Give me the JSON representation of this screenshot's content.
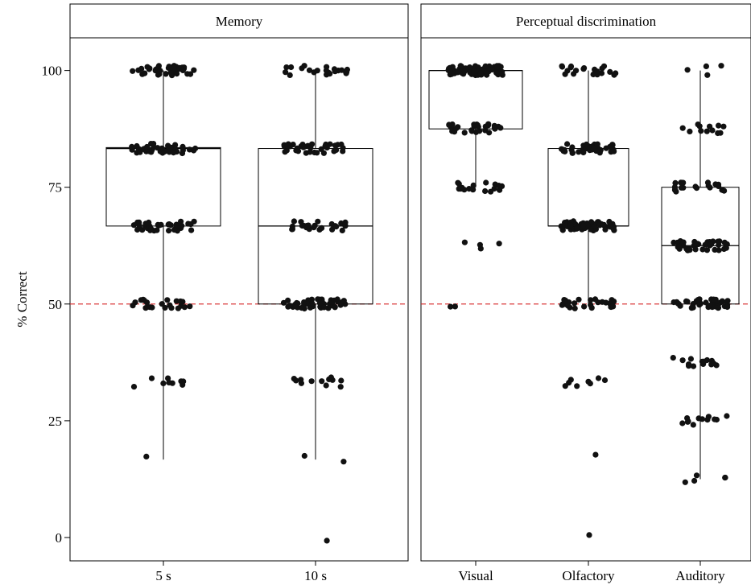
{
  "chart_data": {
    "type": "box-jitter",
    "ylabel": "% Correct",
    "ylim": [
      -5,
      107
    ],
    "yticks": [
      0,
      25,
      50,
      75,
      100
    ],
    "reference_line": {
      "y": 50,
      "color": "#d62728",
      "style": "dashed"
    },
    "point_color": "#111111",
    "panels": [
      {
        "title": "Memory",
        "categories": [
          "5 s",
          "10 s"
        ],
        "boxes": [
          {
            "category": "5 s",
            "min": 16.7,
            "q1": 66.7,
            "median": 83.3,
            "q3": 83.5,
            "max": 100
          },
          {
            "category": "10 s",
            "min": 16.7,
            "q1": 50,
            "median": 66.7,
            "q3": 83.3,
            "max": 100
          }
        ],
        "points": [
          {
            "category": "5 s",
            "groups": [
              [
                100,
                40
              ],
              [
                83.3,
                40
              ],
              [
                66.7,
                36
              ],
              [
                50,
                22
              ],
              [
                33.3,
                9
              ],
              [
                16.7,
                1
              ]
            ]
          },
          {
            "category": "10 s",
            "groups": [
              [
                100,
                22
              ],
              [
                83.3,
                35
              ],
              [
                66.7,
                25
              ],
              [
                50,
                45
              ],
              [
                33.3,
                12
              ],
              [
                16.7,
                2
              ],
              [
                0,
                1
              ]
            ]
          }
        ]
      },
      {
        "title": "Perceptual discrimination",
        "categories": [
          "Visual",
          "Olfactory",
          "Auditory"
        ],
        "boxes": [
          {
            "category": "Visual",
            "min": 75,
            "q1": 87.5,
            "median": 100,
            "q3": 100,
            "max": 100
          },
          {
            "category": "Olfactory",
            "min": 50,
            "q1": 66.7,
            "median": 66.7,
            "q3": 83.3,
            "max": 100
          },
          {
            "category": "Auditory",
            "min": 12.5,
            "q1": 50,
            "median": 62.5,
            "q3": 75,
            "max": 100
          }
        ],
        "points": [
          {
            "category": "Visual",
            "groups": [
              [
                100,
                90
              ],
              [
                87.5,
                30
              ],
              [
                75,
                18
              ],
              [
                62.5,
                4
              ],
              [
                50,
                2
              ]
            ]
          },
          {
            "category": "Olfactory",
            "groups": [
              [
                100,
                20
              ],
              [
                83.3,
                45
              ],
              [
                66.7,
                60
              ],
              [
                50,
                28
              ],
              [
                33.3,
                8
              ],
              [
                16.7,
                1
              ],
              [
                0,
                1
              ]
            ]
          },
          {
            "category": "Auditory",
            "groups": [
              [
                100,
                4
              ],
              [
                87.5,
                12
              ],
              [
                75,
                22
              ],
              [
                62.5,
                45
              ],
              [
                50,
                45
              ],
              [
                37.5,
                15
              ],
              [
                25,
                12
              ],
              [
                12.5,
                5
              ]
            ]
          }
        ]
      }
    ]
  }
}
